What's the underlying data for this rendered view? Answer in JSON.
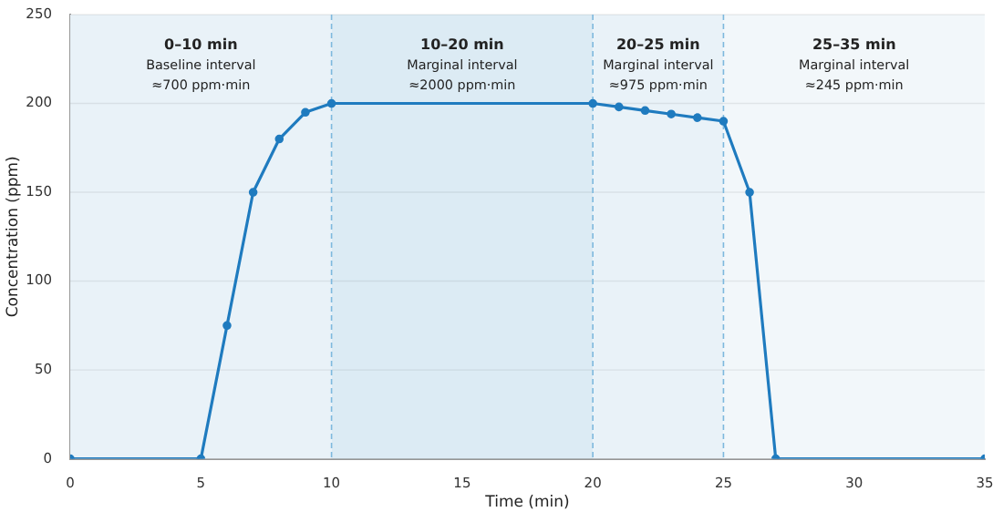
{
  "chart_data": {
    "type": "line",
    "xlabel": "Time (min)",
    "ylabel": "Concentration (ppm)",
    "x": [
      0,
      5,
      6,
      7,
      8,
      9,
      10,
      20,
      21,
      22,
      23,
      24,
      25,
      26,
      27,
      35
    ],
    "series": [
      {
        "color": "#1f7bbf",
        "values": [
          0,
          0,
          75,
          150,
          180,
          195,
          200,
          200,
          198,
          196,
          194,
          192,
          190,
          150,
          0,
          0
        ]
      }
    ],
    "xlim": [
      0,
      35
    ],
    "xticks": [
      0,
      5,
      10,
      15,
      20,
      25,
      30,
      35
    ],
    "ylim": [
      0,
      250
    ],
    "yticks": [
      0,
      50,
      100,
      150,
      200,
      250
    ],
    "bands": [
      {
        "axis": "x",
        "from": 0,
        "to": 10,
        "label": "0–10 min\nBaseline interval\n≈700 ppm·min",
        "color": "#e9f2f8"
      },
      {
        "axis": "x",
        "from": 10,
        "to": 20,
        "label": "10–20 min\nMarginal interval\n≈2000 ppm·min",
        "color": "#dcebf4"
      },
      {
        "axis": "x",
        "from": 20,
        "to": 25,
        "label": "20–25 min\nMarginal interval\n≈975 ppm·min",
        "color": "#e9f2f8"
      },
      {
        "axis": "x",
        "from": 25,
        "to": 35,
        "label": "25–35 min\nMarginal interval\n≈245 ppm·min",
        "color": "#f2f7fa"
      }
    ],
    "ref_lines": [
      {
        "axis": "x",
        "value": 10,
        "color": "#7db8de",
        "line_style": "dashed"
      },
      {
        "axis": "x",
        "value": 20,
        "color": "#7db8de",
        "line_style": "dashed"
      },
      {
        "axis": "x",
        "value": 25,
        "color": "#7db8de",
        "line_style": "dashed"
      }
    ],
    "grid": "y",
    "marker": "circle",
    "line_style": "solid",
    "legend": false
  }
}
